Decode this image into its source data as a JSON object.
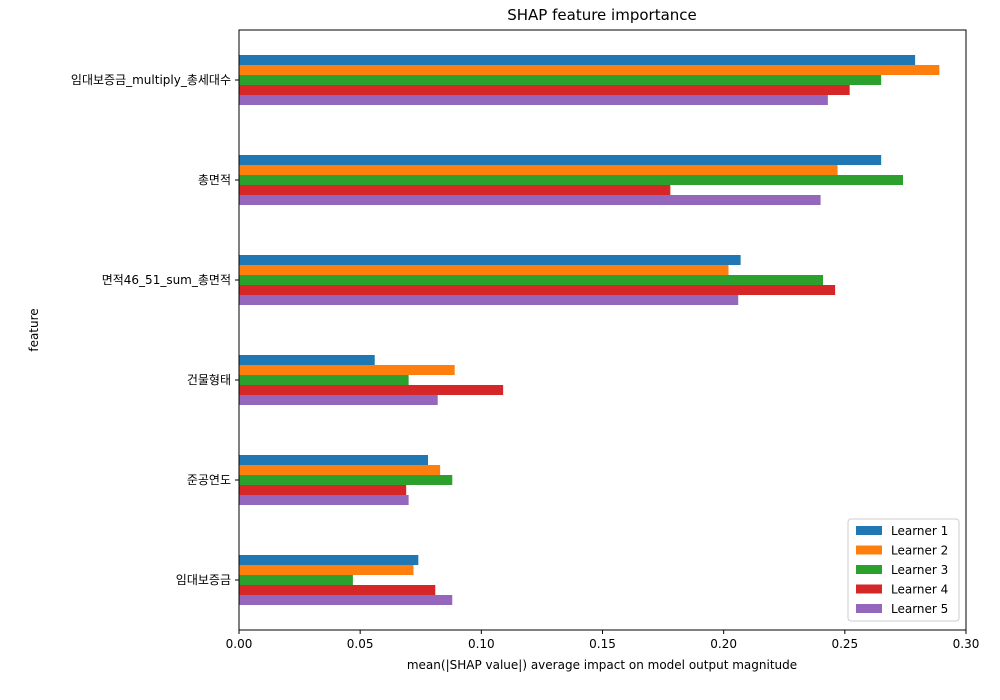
{
  "chart_data": {
    "type": "bar",
    "orientation": "horizontal",
    "title": "SHAP feature importance",
    "xlabel": "mean(|SHAP value|) average impact on model output magnitude",
    "ylabel": "feature",
    "xlim": [
      0,
      0.3
    ],
    "xticks": [
      "0.00",
      "0.05",
      "0.10",
      "0.15",
      "0.20",
      "0.25",
      "0.30"
    ],
    "categories": [
      "임대보증금_multiply_총세대수",
      "총면적",
      "면적46_51_sum_총면적",
      "건물형태",
      "준공연도",
      "임대보증금"
    ],
    "series": [
      {
        "name": "Learner 1",
        "color": "#1f77b4",
        "values": [
          0.279,
          0.265,
          0.207,
          0.056,
          0.078,
          0.074
        ]
      },
      {
        "name": "Learner 2",
        "color": "#ff7f0e",
        "values": [
          0.289,
          0.247,
          0.202,
          0.089,
          0.083,
          0.072
        ]
      },
      {
        "name": "Learner 3",
        "color": "#2ca02c",
        "values": [
          0.265,
          0.274,
          0.241,
          0.07,
          0.088,
          0.047
        ]
      },
      {
        "name": "Learner 4",
        "color": "#d62728",
        "values": [
          0.252,
          0.178,
          0.246,
          0.109,
          0.069,
          0.081
        ]
      },
      {
        "name": "Learner 5",
        "color": "#9467bd",
        "values": [
          0.243,
          0.24,
          0.206,
          0.082,
          0.07,
          0.088
        ]
      }
    ],
    "legend": "bottom-right",
    "grid": false
  }
}
